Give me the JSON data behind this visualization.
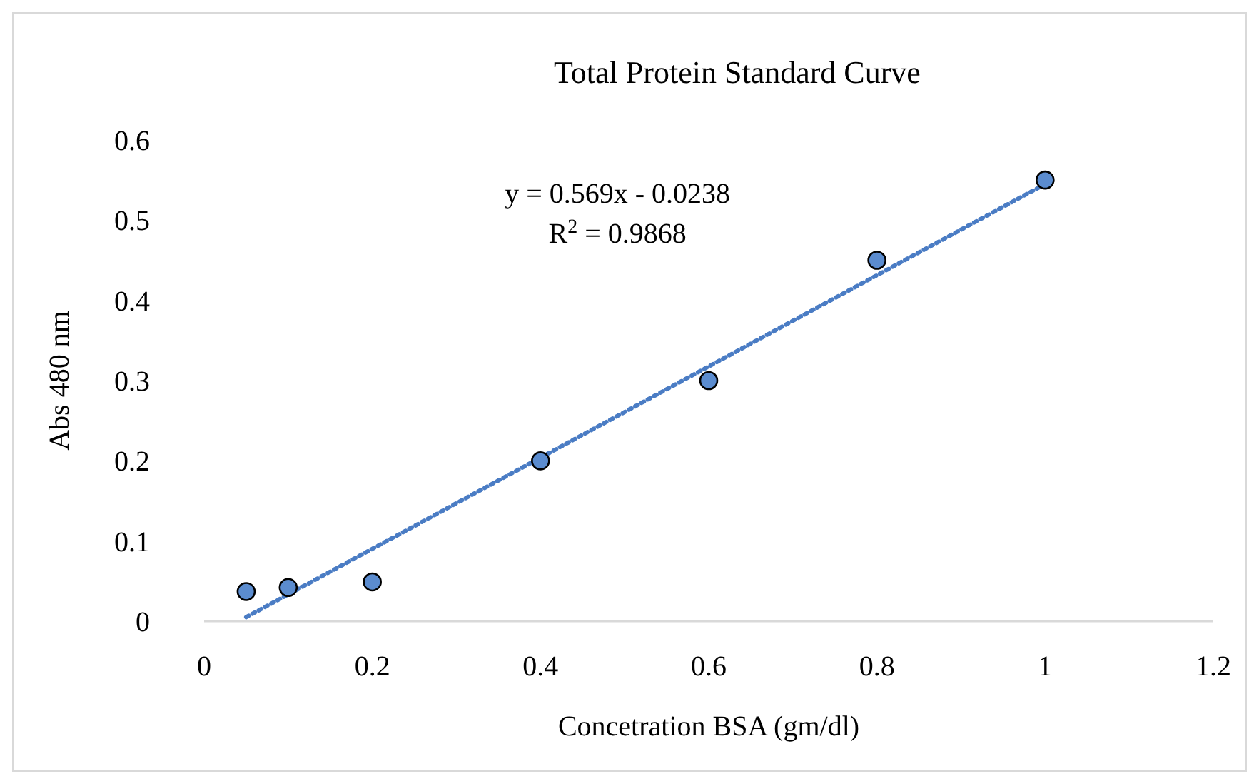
{
  "chart_data": {
    "type": "scatter",
    "title": "Total Protein Standard Curve",
    "xlabel": "Concetration BSA (gm/dl)",
    "ylabel": "Abs 480 nm",
    "xlim": [
      0,
      1.2
    ],
    "xticks": [
      0,
      0.2,
      0.4,
      0.6,
      0.8,
      1,
      1.2
    ],
    "ylim": [
      0,
      0.6
    ],
    "yticks": [
      0,
      0.1,
      0.2,
      0.3,
      0.4,
      0.5,
      0.6
    ],
    "series": [
      {
        "x": [
          0.05,
          0.1,
          0.2,
          0.4,
          0.6,
          0.8,
          1
        ],
        "values": [
          0.037,
          0.042,
          0.049,
          0.2,
          0.3,
          0.45,
          0.55
        ],
        "color": "#5b8ccf",
        "marker": "circle"
      },
      {
        "type": "line",
        "x": [
          0.05,
          1
        ],
        "values": [
          0.005,
          0.545
        ],
        "color": "#4a7cc4",
        "line_style": "dotted"
      }
    ],
    "annotations": [
      "y = 0.569x - 0.0238",
      "R$^{2}$ = 0.9868"
    ]
  }
}
